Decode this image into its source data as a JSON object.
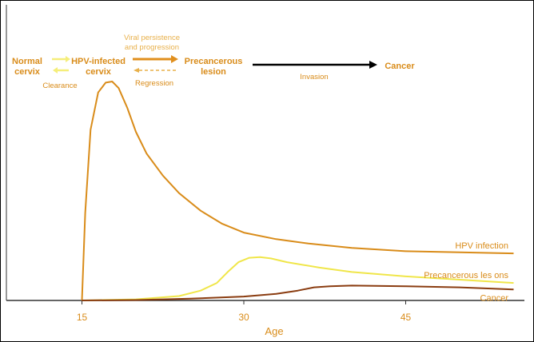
{
  "chart_data": {
    "type": "line",
    "xlabel": "Age",
    "x_ticks": [
      15,
      30,
      45
    ],
    "xlim": [
      8,
      56
    ],
    "ylim": [
      0,
      100
    ],
    "grid": false,
    "series": [
      {
        "name": "HPV infection",
        "color": "#d98c1a",
        "x": [
          15,
          15.3,
          15.8,
          16.5,
          17.2,
          17.8,
          18.4,
          19.2,
          20,
          21,
          22.5,
          24,
          26,
          28,
          30,
          33,
          36,
          40,
          45,
          50,
          55
        ],
        "y": [
          0,
          40,
          78,
          95,
          99.5,
          100,
          97,
          88,
          77,
          67,
          57,
          49,
          41,
          35,
          31,
          28,
          26,
          24,
          22.5,
          22,
          21.5
        ]
      },
      {
        "name": "Precancerous les ons",
        "color": "#f0e64a",
        "x": [
          15,
          20,
          24,
          26,
          27.5,
          28.5,
          29.5,
          30.5,
          31.5,
          32.5,
          34,
          37,
          40,
          45,
          50,
          55
        ],
        "y": [
          0,
          0.5,
          2,
          4.5,
          8,
          13,
          17.5,
          19.5,
          19.8,
          19.2,
          17.5,
          15,
          13,
          11,
          9.5,
          8
        ]
      },
      {
        "name": "Cancer",
        "color": "#8a3c10",
        "x": [
          15,
          20,
          25,
          30,
          33,
          35,
          36.5,
          38,
          40,
          45,
          50,
          55
        ],
        "y": [
          0,
          0.2,
          0.8,
          1.8,
          3,
          4.5,
          6,
          6.5,
          6.8,
          6.5,
          6,
          5
        ]
      }
    ]
  },
  "diagram": {
    "normal_line1": "Normal",
    "normal_line2": "cervix",
    "hpv_line1": "HPV-infected",
    "hpv_line2": "cervix",
    "precancer_line1": "Precancerous",
    "precancer_line2": "lesion",
    "cancer": "Cancer",
    "clearance": "Clearance",
    "viral_line1": "Viral persistence",
    "viral_line2": "and progression",
    "regression": "Regression",
    "invasion": "Invasion",
    "color_forward": "#f5ee7a",
    "color_clear": "#f5ee7a",
    "color_progress": "#e08f1e",
    "color_regress": "#e8b04a",
    "color_invasion": "#000000"
  }
}
